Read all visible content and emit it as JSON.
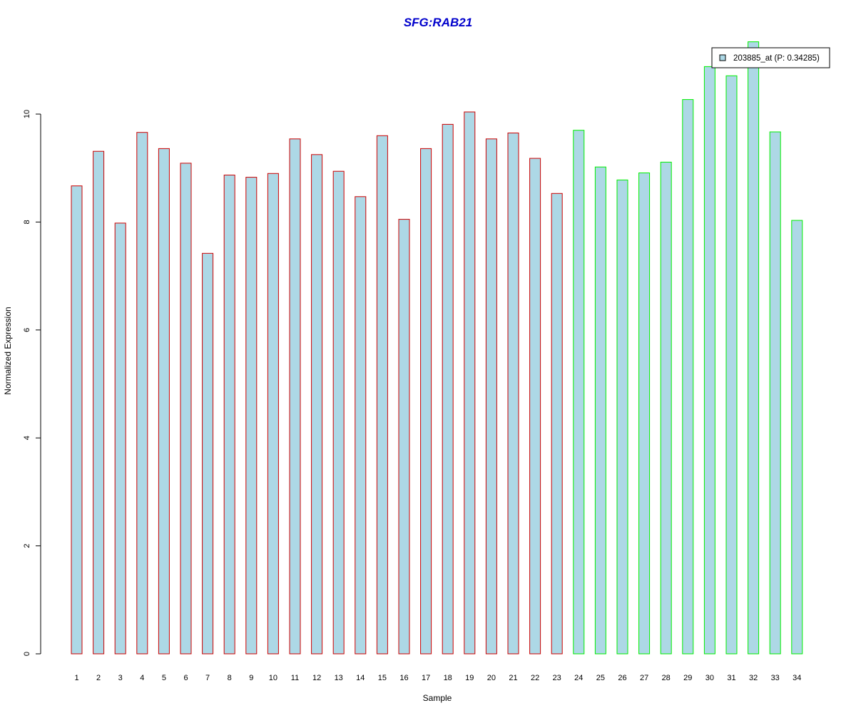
{
  "chart_data": {
    "type": "bar",
    "title": "SFG:RAB21",
    "xlabel": "Sample",
    "ylabel": "Normalized Expression",
    "categories": [
      "1",
      "2",
      "3",
      "4",
      "5",
      "6",
      "7",
      "8",
      "9",
      "10",
      "11",
      "12",
      "13",
      "14",
      "15",
      "16",
      "17",
      "18",
      "19",
      "20",
      "21",
      "22",
      "23",
      "24",
      "25",
      "26",
      "27",
      "28",
      "29",
      "30",
      "31",
      "32",
      "33",
      "34"
    ],
    "series": [
      {
        "name": "203885_at (P: 0.34285)",
        "values": [
          8.67,
          9.31,
          7.98,
          9.66,
          9.36,
          9.09,
          7.42,
          8.87,
          8.83,
          8.9,
          9.54,
          9.25,
          8.94,
          8.47,
          9.6,
          8.05,
          9.36,
          9.81,
          10.04,
          9.54,
          9.65,
          9.18,
          8.53,
          9.7,
          9.02,
          8.78,
          8.91,
          9.11,
          10.27,
          10.88,
          10.71,
          11.34,
          9.67,
          8.03
        ]
      }
    ],
    "yticks": [
      0,
      2,
      4,
      6,
      8,
      10
    ],
    "ylim": [
      0,
      11.34
    ],
    "legend_position": "top-right",
    "grid": false,
    "colors": {
      "fill": "#add8e6",
      "group1_border": "#cc0000",
      "group2_border": "#00ee00",
      "title": "#0000cc",
      "group1_count": 23
    }
  }
}
